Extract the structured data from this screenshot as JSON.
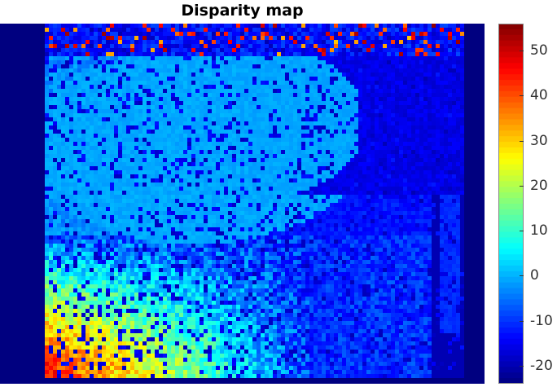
{
  "title": "Disparity map",
  "chart_data": {
    "type": "heatmap",
    "title": "Disparity map",
    "xlabel": "",
    "ylabel": "",
    "colormap": "jet",
    "clim": [
      -24,
      56
    ],
    "colorbar_ticks": [
      "50",
      "40",
      "30",
      "20",
      "10",
      "0",
      "-10",
      "-20"
    ],
    "colorbar_tick_values": [
      50,
      40,
      30,
      20,
      10,
      0,
      -10,
      -20
    ],
    "regions": [
      {
        "name": "invalid-left-border",
        "value": -24
      },
      {
        "name": "top-left-noisy-band",
        "value": -5
      },
      {
        "name": "background-upper-left",
        "value": -2
      },
      {
        "name": "right-wall",
        "value": -18
      },
      {
        "name": "far-right-structure",
        "value": -12
      },
      {
        "name": "mid-scene-noise",
        "value": 2
      },
      {
        "name": "lower-left-foreground",
        "value": 25
      },
      {
        "name": "bottom-left-near-objects",
        "value": 45
      },
      {
        "name": "bottom-invalid-band",
        "value": -24
      }
    ]
  }
}
